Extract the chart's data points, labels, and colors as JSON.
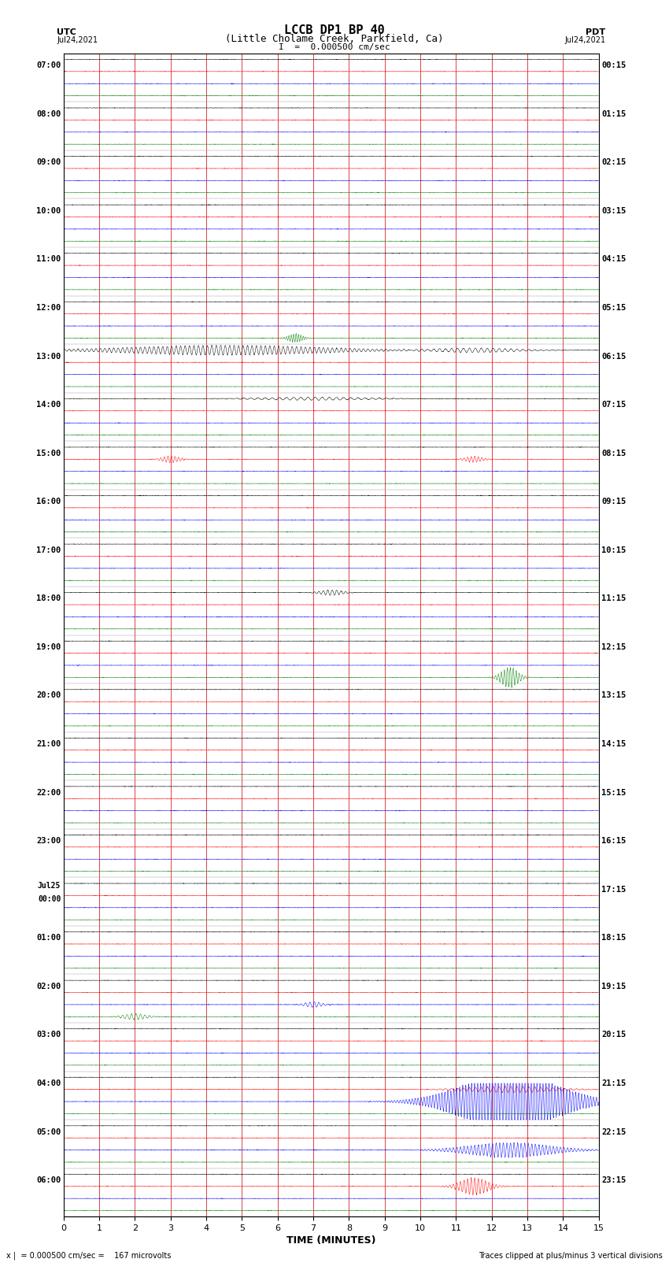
{
  "title_line1": "LCCB DP1 BP 40",
  "title_line2": "(Little Cholame Creek, Parkfield, Ca)",
  "scale_label": "I  =  0.000500 cm/sec",
  "bottom_left": "x |  = 0.000500 cm/sec =    167 microvolts",
  "bottom_right": "Traces clipped at plus/minus 3 vertical divisions",
  "xlabel": "TIME (MINUTES)",
  "num_rows": 24,
  "minutes_per_row": 15,
  "traces_per_row": 4,
  "colors": [
    "black",
    "red",
    "blue",
    "green"
  ],
  "fig_width": 8.5,
  "fig_height": 16.13,
  "bg_color": "white",
  "grid_color": "#cc0000",
  "base_noise": 0.018,
  "utc_times": [
    "07:00",
    "08:00",
    "09:00",
    "10:00",
    "11:00",
    "12:00",
    "13:00",
    "14:00",
    "15:00",
    "16:00",
    "17:00",
    "18:00",
    "19:00",
    "20:00",
    "21:00",
    "22:00",
    "23:00",
    "Jul25\n00:00",
    "01:00",
    "02:00",
    "03:00",
    "04:00",
    "05:00",
    "06:00"
  ],
  "pdt_times": [
    "00:15",
    "01:15",
    "02:15",
    "03:15",
    "04:15",
    "05:15",
    "06:15",
    "07:15",
    "08:15",
    "09:15",
    "10:15",
    "11:15",
    "12:15",
    "13:15",
    "14:15",
    "15:15",
    "16:15",
    "17:15",
    "18:15",
    "19:15",
    "20:15",
    "21:15",
    "22:15",
    "23:15"
  ]
}
